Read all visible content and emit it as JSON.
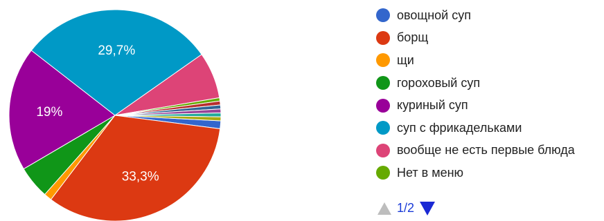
{
  "chart_data": {
    "type": "pie",
    "series": [
      {
        "name": "овощной суп",
        "value": 1.2,
        "color": "#3366cc"
      },
      {
        "name": "борщ",
        "value": 33.3,
        "color": "#dc3912",
        "label": "33,3%"
      },
      {
        "name": "щи",
        "value": 1.2,
        "color": "#ff9900"
      },
      {
        "name": "гороховый суп",
        "value": 5.0,
        "color": "#109618"
      },
      {
        "name": "куриный суп",
        "value": 19.0,
        "color": "#990099",
        "label": "19%"
      },
      {
        "name": "суп с фрикадельками",
        "value": 29.7,
        "color": "#0099c6",
        "label": "29,7%"
      },
      {
        "name": "вообще не есть первые блюда",
        "value": 7.1,
        "color": "#dd4477"
      },
      {
        "name": "Нет в меню",
        "value": 0.5,
        "color": "#66aa00"
      },
      {
        "value": 0.6,
        "color": "#b82e2e"
      },
      {
        "value": 0.6,
        "color": "#316395"
      },
      {
        "value": 0.6,
        "color": "#994499"
      },
      {
        "value": 0.6,
        "color": "#22aa99"
      },
      {
        "value": 0.6,
        "color": "#aaaa11"
      }
    ],
    "legend_position": "right",
    "start_angle_deg": 93
  },
  "pager": {
    "text": "1/2",
    "up_icon": "triangle-up-icon",
    "down_icon": "triangle-down-icon"
  }
}
